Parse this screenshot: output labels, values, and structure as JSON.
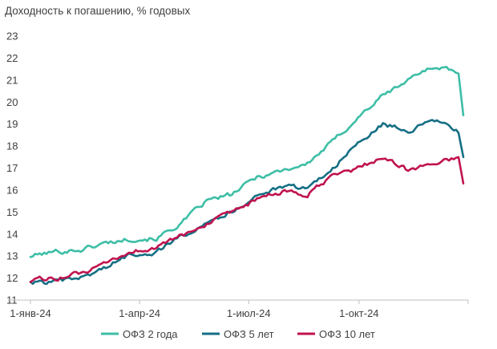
{
  "chart_data": {
    "type": "line",
    "title": "Доходность к погашению, % годовых",
    "xlabel": "",
    "ylabel": "",
    "x": [
      "2024-01-01",
      "2024-01-22",
      "2024-02-12",
      "2024-03-04",
      "2024-03-25",
      "2024-04-15",
      "2024-05-06",
      "2024-05-27",
      "2024-06-17",
      "2024-07-08",
      "2024-07-29",
      "2024-08-19",
      "2024-09-09",
      "2024-09-30",
      "2024-10-21",
      "2024-11-11",
      "2024-11-25",
      "2024-12-09",
      "2024-12-23",
      "2024-12-27"
    ],
    "x_ticks": [
      "1-янв-24",
      "1-апр-24",
      "1-июл-24",
      "1-окт-24"
    ],
    "y_ticks": [
      "11",
      "12",
      "13",
      "14",
      "15",
      "16",
      "17",
      "18",
      "19",
      "20",
      "21",
      "22",
      "23"
    ],
    "ylim": [
      11,
      23
    ],
    "grid": false,
    "legend_position": "bottom",
    "series": [
      {
        "name": "ОФЗ 2 года",
        "color": "#3dbea6",
        "values": [
          13.0,
          13.2,
          13.3,
          13.6,
          13.8,
          13.8,
          14.5,
          15.5,
          15.8,
          16.6,
          16.9,
          17.2,
          18.2,
          19.3,
          20.3,
          21.0,
          21.5,
          21.6,
          21.3,
          19.4
        ]
      },
      {
        "name": "ОФЗ 5 лет",
        "color": "#156f84",
        "values": [
          11.8,
          11.8,
          12.0,
          12.5,
          13.1,
          13.2,
          13.9,
          14.6,
          15.0,
          15.8,
          16.1,
          16.1,
          17.0,
          18.1,
          19.0,
          18.7,
          19.0,
          19.1,
          18.6,
          17.5
        ]
      },
      {
        "name": "ОФЗ 10 лет",
        "color": "#c0134f",
        "values": [
          11.9,
          12.0,
          12.2,
          12.6,
          13.2,
          13.4,
          13.9,
          14.5,
          14.9,
          15.6,
          15.9,
          15.8,
          16.6,
          17.0,
          17.5,
          16.9,
          17.1,
          17.3,
          17.5,
          16.3
        ]
      }
    ]
  }
}
